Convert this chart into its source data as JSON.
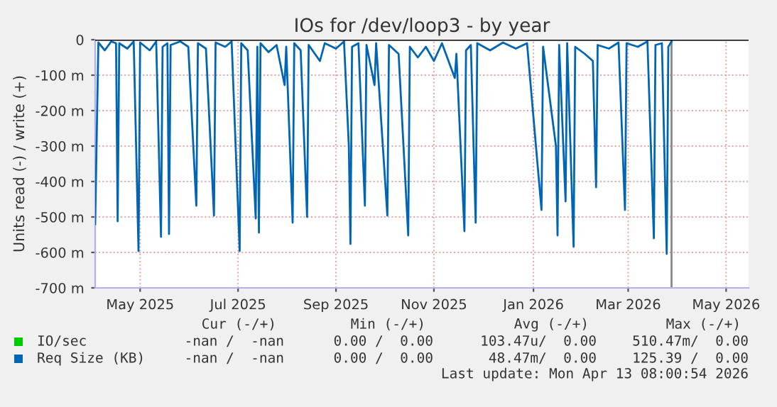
{
  "chart_data": {
    "type": "line",
    "title": "IOs for /dev/loop3 - by year",
    "ylabel": "Units read (-) / write (+)",
    "xlim": [
      "2025-04-18",
      "2026-05-30"
    ],
    "xticks": [
      {
        "value": "2025-05-16",
        "label": "May 2025"
      },
      {
        "value": "2025-07-16",
        "label": "Jul 2025"
      },
      {
        "value": "2025-09-15",
        "label": "Sep 2025"
      },
      {
        "value": "2025-11-15",
        "label": "Nov 2025"
      },
      {
        "value": "2026-01-16",
        "label": "Jan 2026"
      },
      {
        "value": "2026-03-16",
        "label": "Mar 2026"
      },
      {
        "value": "2026-05-16",
        "label": "May 2026"
      }
    ],
    "ylim": [
      -700,
      0
    ],
    "yticks": [
      {
        "value": -700,
        "label": "-700 m"
      },
      {
        "value": -600,
        "label": "-600 m"
      },
      {
        "value": -500,
        "label": "-500 m"
      },
      {
        "value": -400,
        "label": "-400 m"
      },
      {
        "value": -300,
        "label": "-300 m"
      },
      {
        "value": -200,
        "label": "-200 m"
      },
      {
        "value": -100,
        "label": "-100 m"
      },
      0
    ],
    "grid": true,
    "legend": "bottom left",
    "marker": "none",
    "line_style": "solid",
    "ref_lines": [
      {
        "axis": "x",
        "value": "2026-04-12",
        "color": "#888888"
      }
    ],
    "series": [
      {
        "name": "IO/sec",
        "color": "#00cc00"
      },
      {
        "name": "Req Size (KB)",
        "color": "#0066b3",
        "x": [
          "2025-04-18",
          "2025-04-20",
          "2025-04-24",
          "2025-04-28",
          "2025-05-01",
          "2025-05-02",
          "2025-05-03",
          "2025-05-08",
          "2025-05-12",
          "2025-05-15",
          "2025-05-16",
          "2025-05-22",
          "2025-05-26",
          "2025-05-29",
          "2025-05-30",
          "2025-06-02",
          "2025-06-03",
          "2025-06-04",
          "2025-06-10",
          "2025-06-15",
          "2025-06-20",
          "2025-06-21",
          "2025-06-26",
          "2025-07-01",
          "2025-07-02",
          "2025-07-08",
          "2025-07-12",
          "2025-07-17",
          "2025-07-18",
          "2025-07-22",
          "2025-07-27",
          "2025-07-28",
          "2025-07-29",
          "2025-07-30",
          "2025-08-04",
          "2025-08-09",
          "2025-08-14",
          "2025-08-15",
          "2025-08-19",
          "2025-08-20",
          "2025-08-24",
          "2025-08-28",
          "2025-08-29",
          "2025-09-05",
          "2025-09-08",
          "2025-09-15",
          "2025-09-20",
          "2025-09-23",
          "2025-09-24",
          "2025-09-25",
          "2025-09-29",
          "2025-10-03",
          "2025-10-04",
          "2025-10-09",
          "2025-10-10",
          "2025-10-17",
          "2025-10-18",
          "2025-10-24",
          "2025-10-30",
          "2025-10-31",
          "2025-11-05",
          "2025-11-10",
          "2025-11-15",
          "2025-11-20",
          "2025-11-28",
          "2025-11-29",
          "2025-12-04",
          "2025-12-05",
          "2025-12-08",
          "2025-12-11",
          "2025-12-12",
          "2025-12-20",
          "2025-12-28",
          "2026-01-05",
          "2026-01-12",
          "2026-01-21",
          "2026-01-22",
          "2026-01-30",
          "2026-01-31",
          "2026-02-01",
          "2026-02-05",
          "2026-02-06",
          "2026-02-10",
          "2026-02-11",
          "2026-02-17",
          "2026-02-22",
          "2026-02-24",
          "2026-02-25",
          "2026-03-04",
          "2026-03-10",
          "2026-03-14",
          "2026-03-15",
          "2026-03-22",
          "2026-03-28",
          "2026-04-01",
          "2026-04-02",
          "2026-04-06",
          "2026-04-09",
          "2026-04-10",
          "2026-04-12"
        ],
        "values": [
          -520,
          -8,
          -30,
          -5,
          -10,
          -512,
          -10,
          -25,
          -5,
          -596,
          -8,
          -30,
          -5,
          -556,
          -20,
          -10,
          -548,
          -15,
          -5,
          -20,
          -468,
          -10,
          -25,
          -496,
          -8,
          -20,
          -5,
          -596,
          -10,
          -30,
          -504,
          -20,
          -544,
          -10,
          -35,
          -15,
          -128,
          -20,
          -516,
          -10,
          -30,
          -500,
          -15,
          -60,
          -10,
          -25,
          -5,
          -300,
          -576,
          -20,
          -10,
          -468,
          -15,
          -128,
          -10,
          -496,
          -15,
          -40,
          -552,
          -20,
          -50,
          -20,
          -60,
          -10,
          -108,
          -40,
          -540,
          -30,
          -15,
          -516,
          -10,
          -30,
          -8,
          -25,
          -10,
          -480,
          -20,
          -300,
          -552,
          -15,
          -456,
          -10,
          -584,
          -20,
          -40,
          -60,
          -416,
          -15,
          -25,
          -8,
          -480,
          -10,
          -20,
          -5,
          -560,
          -15,
          -10,
          -604,
          -20,
          -5
        ]
      }
    ],
    "annotations": [
      "Cur (-/+)",
      "Min (-/+)",
      "Avg (-/+)",
      "Max (-/+)",
      "-nan /  -nan",
      "0.00 /  0.00",
      "103.47u/  0.00",
      "510.47m/  0.00",
      "-nan /  -nan",
      "0.00 /  0.00",
      "48.47m/  0.00",
      "125.39 /  0.00",
      "Last update: Mon Apr 13 08:00:54 2026"
    ]
  }
}
